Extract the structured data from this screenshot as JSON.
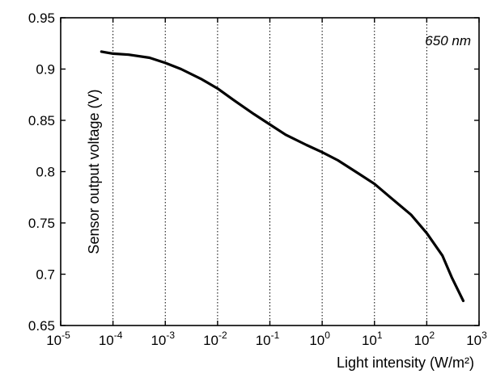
{
  "chart_data": {
    "type": "line",
    "xscale": "log",
    "xlim": [
      1e-05,
      1000
    ],
    "ylim": [
      0.65,
      0.95
    ],
    "xlabel": "Light intensity (W/m²)",
    "ylabel": "Sensor output voltage (V)",
    "annotation": "650 nm",
    "grid": "vertical-dotted",
    "x_ticks": [
      {
        "value": 1e-05,
        "base": "10",
        "exp": "-5"
      },
      {
        "value": 0.0001,
        "base": "10",
        "exp": "-4"
      },
      {
        "value": 0.001,
        "base": "10",
        "exp": "-3"
      },
      {
        "value": 0.01,
        "base": "10",
        "exp": "-2"
      },
      {
        "value": 0.1,
        "base": "10",
        "exp": "-1"
      },
      {
        "value": 1,
        "base": "10",
        "exp": "0"
      },
      {
        "value": 10,
        "base": "10",
        "exp": "1"
      },
      {
        "value": 100,
        "base": "10",
        "exp": "2"
      },
      {
        "value": 1000,
        "base": "10",
        "exp": "3"
      }
    ],
    "y_ticks": [
      {
        "value": 0.65,
        "label": "0.65"
      },
      {
        "value": 0.7,
        "label": "0.7"
      },
      {
        "value": 0.75,
        "label": "0.75"
      },
      {
        "value": 0.8,
        "label": "0.8"
      },
      {
        "value": 0.85,
        "label": "0.85"
      },
      {
        "value": 0.9,
        "label": "0.9"
      },
      {
        "value": 0.95,
        "label": "0.95"
      }
    ],
    "series": [
      {
        "x": [
          6e-05,
          0.0001,
          0.0002,
          0.0005,
          0.001,
          0.002,
          0.005,
          0.01,
          0.02,
          0.05,
          0.1,
          0.2,
          0.5,
          1,
          2,
          5,
          10,
          20,
          50,
          100,
          200,
          300,
          500
        ],
        "y": [
          0.917,
          0.915,
          0.914,
          0.911,
          0.906,
          0.9,
          0.89,
          0.881,
          0.87,
          0.856,
          0.846,
          0.836,
          0.826,
          0.819,
          0.811,
          0.798,
          0.788,
          0.775,
          0.758,
          0.74,
          0.718,
          0.697,
          0.674
        ]
      }
    ]
  }
}
